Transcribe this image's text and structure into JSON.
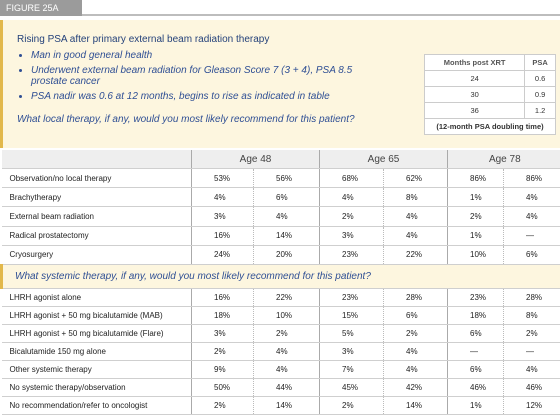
{
  "figure_label": "FIGURE 25A",
  "intro": {
    "title": "Rising PSA after primary external beam radiation therapy",
    "bullets": [
      "Man in good general health",
      "Underwent external beam radiation for Gleason Score 7 (3 + 4), PSA 8.5 prostate cancer",
      "PSA nadir was 0.6 at 12 months, begins to rise as indicated in table"
    ],
    "question": "What local therapy, if any, would you most likely recommend for this patient?"
  },
  "psa_table": {
    "headers": [
      "Months post XRT",
      "PSA"
    ],
    "rows": [
      [
        "24",
        "0.6"
      ],
      [
        "30",
        "0.9"
      ],
      [
        "36",
        "1.2"
      ]
    ],
    "footnote": "(12-month PSA doubling time)"
  },
  "table": {
    "age_headers": [
      "Age 48",
      "Age 65",
      "Age 78"
    ],
    "local_rows": [
      {
        "label": "Observation/no local therapy",
        "values": [
          "53%",
          "56%",
          "68%",
          "62%",
          "86%",
          "86%"
        ]
      },
      {
        "label": "Brachytherapy",
        "values": [
          "4%",
          "6%",
          "4%",
          "8%",
          "1%",
          "4%"
        ]
      },
      {
        "label": "External beam radiation",
        "values": [
          "3%",
          "4%",
          "2%",
          "4%",
          "2%",
          "4%"
        ]
      },
      {
        "label": "Radical prostatectomy",
        "values": [
          "16%",
          "14%",
          "3%",
          "4%",
          "1%",
          "—"
        ]
      },
      {
        "label": "Cryosurgery",
        "values": [
          "24%",
          "20%",
          "23%",
          "22%",
          "10%",
          "6%"
        ]
      }
    ],
    "systemic_question": "What systemic therapy, if any, would you most likely recommend for this patient?",
    "systemic_rows": [
      {
        "label": "LHRH agonist alone",
        "values": [
          "16%",
          "22%",
          "23%",
          "28%",
          "23%",
          "28%"
        ]
      },
      {
        "label": "LHRH agonist + 50 mg bicalutamide (MAB)",
        "values": [
          "18%",
          "10%",
          "15%",
          "6%",
          "18%",
          "8%"
        ]
      },
      {
        "label": "LHRH agonist + 50 mg bicalutamide (Flare)",
        "values": [
          "3%",
          "2%",
          "5%",
          "2%",
          "6%",
          "2%"
        ]
      },
      {
        "label": "Bicalutamide 150 mg alone",
        "values": [
          "2%",
          "4%",
          "3%",
          "4%",
          "—",
          "—"
        ]
      },
      {
        "label": "Other systemic therapy",
        "values": [
          "9%",
          "4%",
          "7%",
          "4%",
          "6%",
          "4%"
        ]
      },
      {
        "label": "No systemic therapy/observation",
        "values": [
          "50%",
          "44%",
          "45%",
          "42%",
          "46%",
          "46%"
        ]
      },
      {
        "label": "No recommendation/refer to oncologist",
        "values": [
          "2%",
          "14%",
          "2%",
          "14%",
          "1%",
          "12%"
        ]
      }
    ]
  }
}
